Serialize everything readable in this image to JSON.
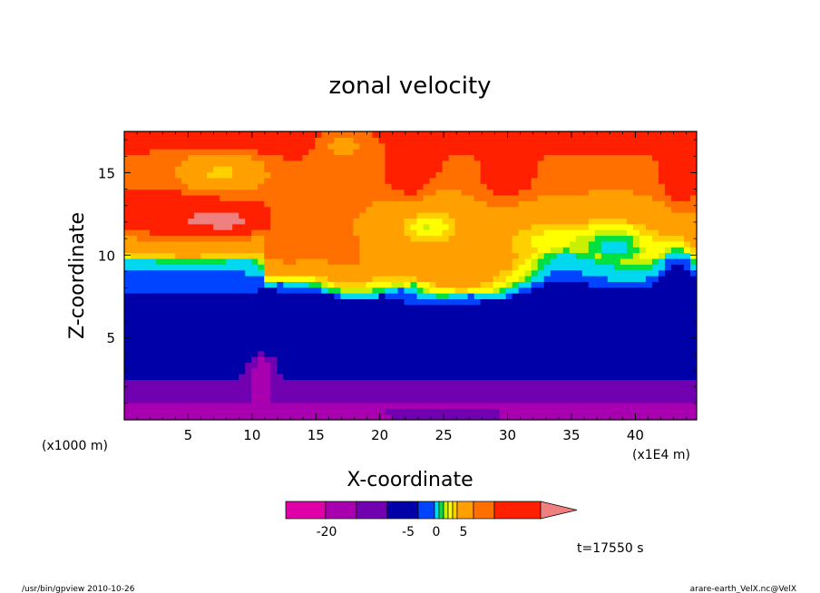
{
  "chart_data": {
    "type": "heatmap",
    "title": "zonal velocity",
    "xlabel": "X-coordinate",
    "ylabel": "Z-coordinate",
    "x_unit_label": "(x1E4 m)",
    "y_unit_label": "(x1000 m)",
    "xlim": [
      0,
      44.8
    ],
    "ylim": [
      0,
      17.5
    ],
    "x_ticks": [
      5,
      10,
      15,
      20,
      25,
      30,
      35,
      40
    ],
    "y_ticks": [
      5,
      10,
      15
    ],
    "x_tick_labels": [
      "5",
      "10",
      "15",
      "20",
      "25",
      "30",
      "35",
      "40"
    ],
    "y_tick_labels": [
      "5",
      "10",
      "15"
    ],
    "contour_levels": [
      -30,
      -25,
      -20,
      -15,
      -10,
      -5,
      -3,
      -2,
      -1,
      0,
      1,
      2,
      3,
      5,
      10,
      15,
      20,
      25,
      30
    ],
    "colorbar": {
      "colors": [
        "#e000a8",
        "#a800b0",
        "#7000b0",
        "#0000a8",
        "#0044ff",
        "#00d8f0",
        "#00e040",
        "#c8f000",
        "#ffff00",
        "#ffd000",
        "#ffa000",
        "#ff7000",
        "#ff2000",
        "#f08080"
      ],
      "tick_labels": [
        "-20",
        "-5",
        "0",
        "5"
      ],
      "extend": "max"
    },
    "annotation": "t=17550 s"
  },
  "footer": {
    "left": "/usr/bin/gpview   2010-10-26",
    "right": "arare-earth_VelX.nc@VelX"
  }
}
